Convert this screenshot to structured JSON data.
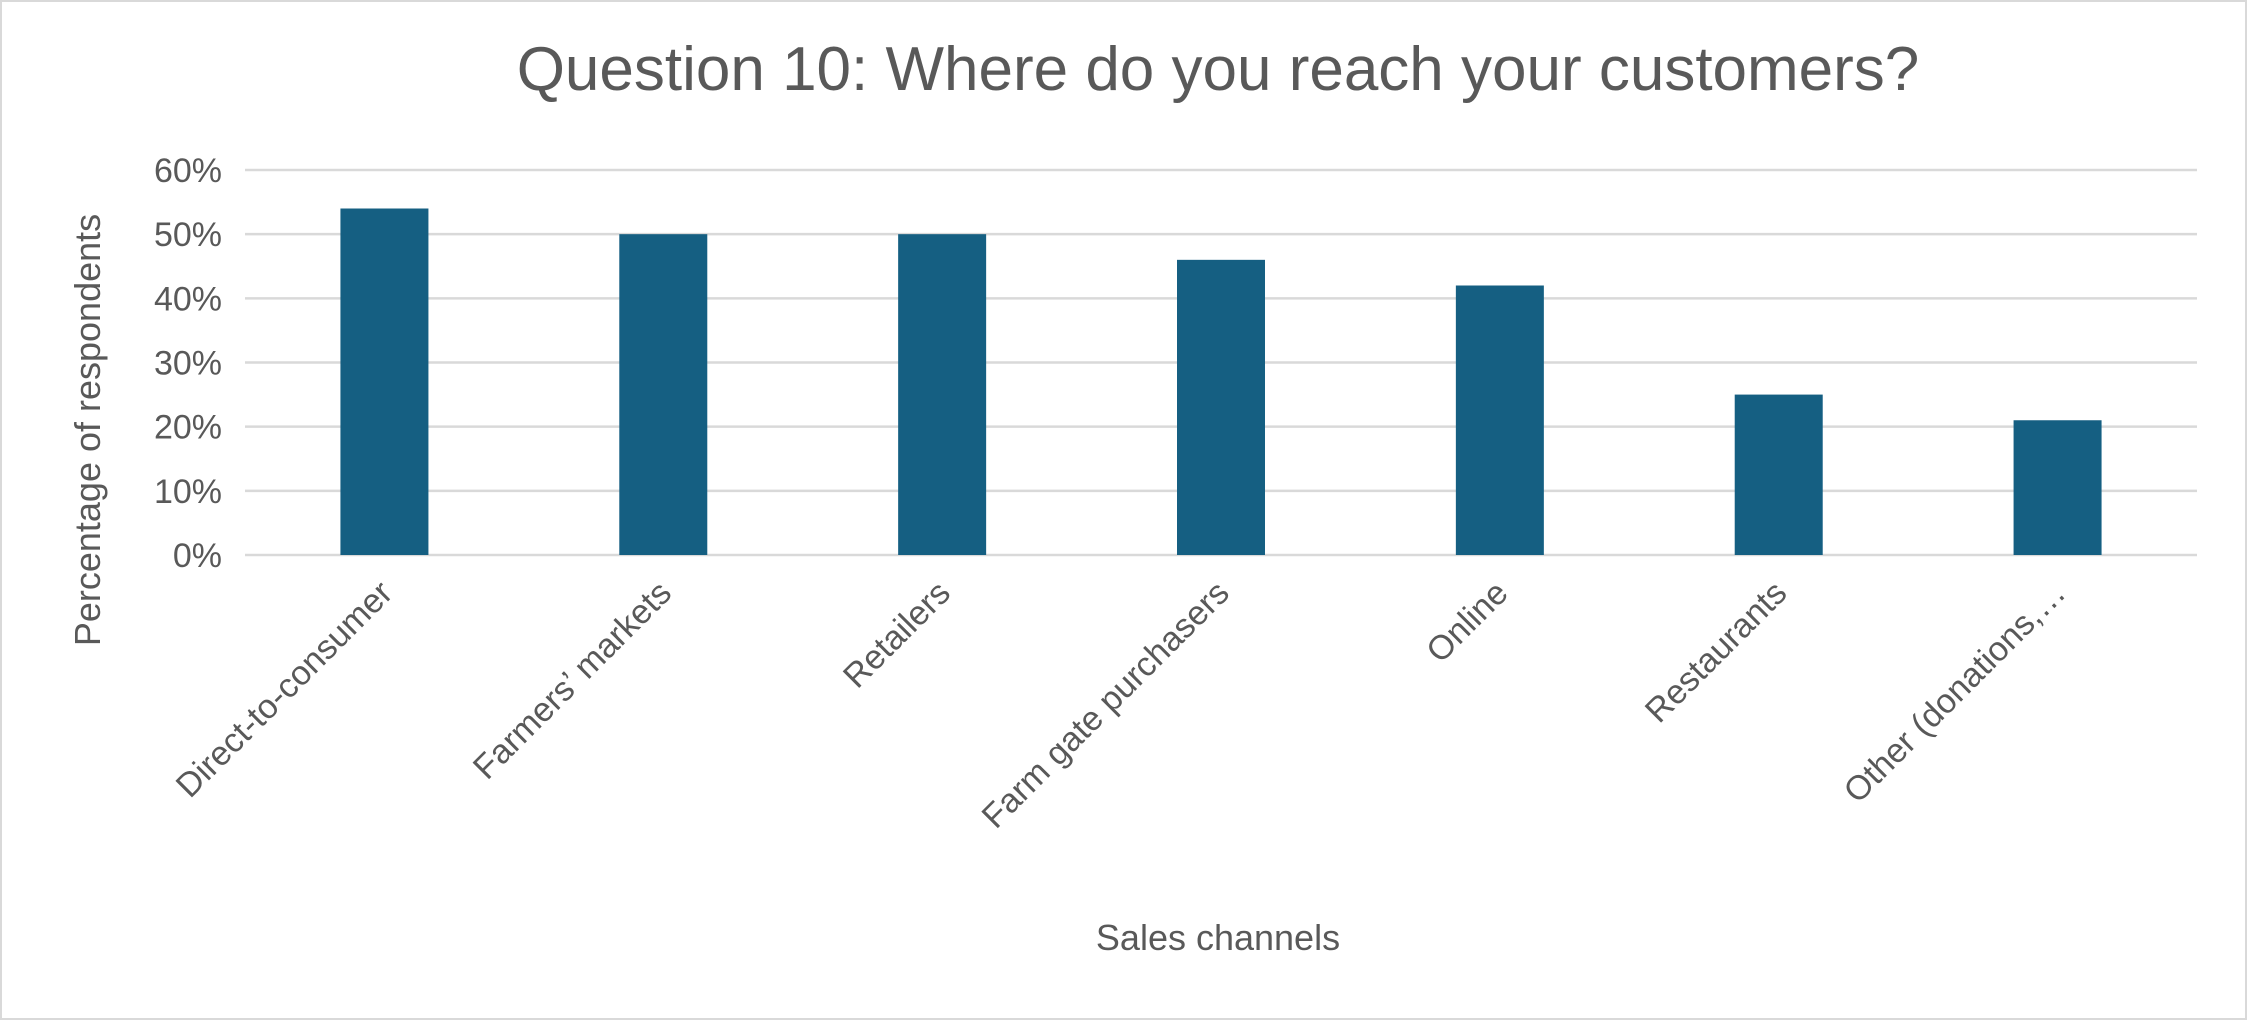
{
  "chart_data": {
    "type": "bar",
    "title": "Question 10: Where do you reach your customers?",
    "xlabel": "Sales channels",
    "ylabel": "Percentage of respondents",
    "categories": [
      "Direct-to-consumer",
      "Farmers’ markets",
      "Retailers",
      "Farm gate purchasers",
      "Online",
      "Restaurants",
      "Other (donations,…"
    ],
    "values": [
      54,
      50,
      50,
      46,
      42,
      25,
      21
    ],
    "unit": "%",
    "ylim": [
      0,
      60
    ],
    "yticks": [
      "0%",
      "10%",
      "20%",
      "30%",
      "40%",
      "50%",
      "60%"
    ],
    "grid": true,
    "legend": "none",
    "bar_color": "#155f82"
  }
}
